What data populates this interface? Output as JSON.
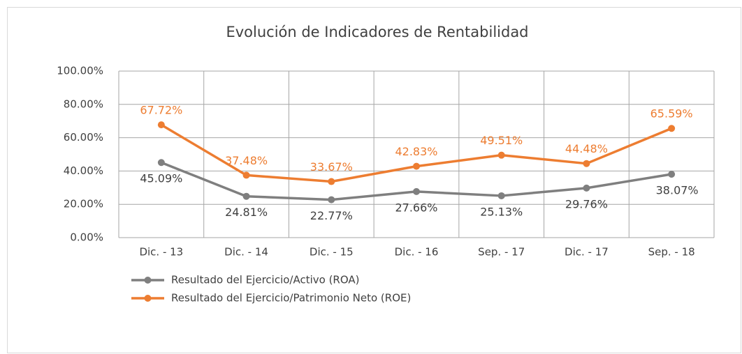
{
  "chart_data": {
    "type": "line",
    "title": "Evolución de Indicadores de Rentabilidad",
    "categories": [
      "Dic. - 13",
      "Dic. - 14",
      "Dic. - 15",
      "Dic. - 16",
      "Sep. - 17",
      "Dic. - 17",
      "Sep. - 18"
    ],
    "series": [
      {
        "name": "Resultado del Ejercicio/Activo (ROA)",
        "color": "#7f7f7f",
        "values": [
          45.09,
          24.81,
          22.77,
          27.66,
          25.13,
          29.76,
          38.07
        ],
        "value_labels": [
          "45.09%",
          "24.81%",
          "22.77%",
          "27.66%",
          "25.13%",
          "29.76%",
          "38.07%"
        ]
      },
      {
        "name": "Resultado del Ejercicio/Patrimonio Neto (ROE)",
        "color": "#ed7d31",
        "values": [
          67.72,
          37.48,
          33.67,
          42.83,
          49.51,
          44.48,
          65.59
        ],
        "value_labels": [
          "67.72%",
          "37.48%",
          "33.67%",
          "42.83%",
          "49.51%",
          "44.48%",
          "65.59%"
        ]
      }
    ],
    "ylim": [
      0,
      100
    ],
    "yticks": [
      {
        "value": 0,
        "label": "0.00%"
      },
      {
        "value": 20,
        "label": "20.00%"
      },
      {
        "value": 40,
        "label": "40.00%"
      },
      {
        "value": 60,
        "label": "60.00%"
      },
      {
        "value": 80,
        "label": "80.00%"
      },
      {
        "value": 100,
        "label": "100.00%"
      }
    ],
    "grid": true
  }
}
